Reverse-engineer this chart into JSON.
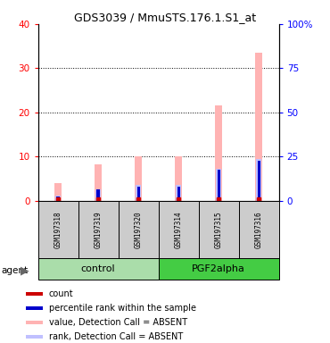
{
  "title": "GDS3039 / MmuSTS.176.1.S1_at",
  "samples": [
    "GSM197318",
    "GSM197319",
    "GSM197320",
    "GSM197314",
    "GSM197315",
    "GSM197316"
  ],
  "count_values": [
    0,
    0,
    0,
    0,
    0,
    0
  ],
  "percentile_values": [
    1,
    2.5,
    3.2,
    3.2,
    7,
    9
  ],
  "value_absent": [
    4,
    8.2,
    10,
    10,
    21.5,
    33.5
  ],
  "rank_absent": [
    1.2,
    2.5,
    3.5,
    3.5,
    7.2,
    9.5
  ],
  "ylim_left": [
    0,
    40
  ],
  "ylim_right": [
    0,
    100
  ],
  "yticks_left": [
    0,
    10,
    20,
    30,
    40
  ],
  "yticks_right": [
    0,
    25,
    50,
    75,
    100
  ],
  "ytick_labels_right": [
    "0",
    "25",
    "50",
    "75",
    "100%"
  ],
  "color_count": "#cc0000",
  "color_percentile": "#0000cc",
  "color_value_absent": "#ffb3b3",
  "color_rank_absent": "#c0c0ff",
  "bg_sample": "#cccccc",
  "bg_control": "#aaddaa",
  "bg_pgf": "#44cc44",
  "legend_items": [
    {
      "label": "count",
      "color": "#cc0000"
    },
    {
      "label": "percentile rank within the sample",
      "color": "#0000cc"
    },
    {
      "label": "value, Detection Call = ABSENT",
      "color": "#ffb3b3"
    },
    {
      "label": "rank, Detection Call = ABSENT",
      "color": "#c0c0ff"
    }
  ]
}
